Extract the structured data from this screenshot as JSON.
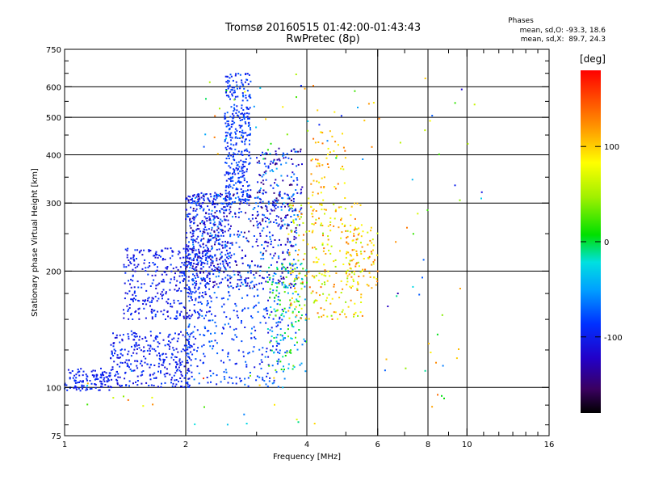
{
  "header": {
    "title_line1": "Tromsø 20160515 01:42:00-01:43:43",
    "title_line2": "RwPretec (8p)"
  },
  "stats": {
    "title": "Phases",
    "o_line": "mean, sd,O: -93.3, 18.6",
    "x_line": "mean, sd,X:  89.7, 24.3"
  },
  "colorbar": {
    "unit": "[deg]",
    "range": [
      -180,
      180
    ],
    "ticks": [
      100,
      0,
      -100
    ],
    "tick_labels": [
      "100",
      "0",
      "-100"
    ]
  },
  "chart_data": {
    "type": "scatter",
    "title": "",
    "xlabel": "Frequency [MHz]",
    "ylabel": "Stationary phase Virtual Height [km]",
    "x_scale": "log",
    "y_scale": "log",
    "xlim": [
      1,
      16
    ],
    "ylim": [
      75,
      750
    ],
    "x_ticks": [
      1,
      2,
      4,
      6,
      8,
      10,
      16
    ],
    "x_tick_labels": [
      "1",
      "2",
      "4",
      "6",
      "8",
      "10",
      "16"
    ],
    "y_ticks": [
      75,
      100,
      200,
      300,
      400,
      500,
      600,
      750
    ],
    "y_tick_labels": [
      "75",
      "100",
      "200",
      "300",
      "400",
      "500",
      "600",
      "750"
    ],
    "x_grid": [
      2,
      4,
      6,
      8,
      10
    ],
    "y_grid": [
      100,
      200,
      300,
      400,
      500,
      600
    ],
    "color_encodes": "phase [deg]",
    "clusters": [
      {
        "x": [
          1.0,
          1.3
        ],
        "y": [
          98,
          112
        ],
        "phase": [
          -110,
          -85
        ],
        "n": 120
      },
      {
        "x": [
          1.3,
          2.1
        ],
        "y": [
          100,
          140
        ],
        "phase": [
          -115,
          -80
        ],
        "n": 320
      },
      {
        "x": [
          1.4,
          2.3
        ],
        "y": [
          150,
          230
        ],
        "phase": [
          -120,
          -80
        ],
        "n": 380
      },
      {
        "x": [
          2.0,
          2.6
        ],
        "y": [
          200,
          320
        ],
        "phase": [
          -115,
          -75
        ],
        "n": 250
      },
      {
        "x": [
          2.5,
          2.9
        ],
        "y": [
          300,
          650
        ],
        "phase": [
          -105,
          -70
        ],
        "n": 360
      },
      {
        "x": [
          2.0,
          3.5
        ],
        "y": [
          100,
          200
        ],
        "phase": [
          -110,
          -60
        ],
        "n": 320
      },
      {
        "x": [
          2.0,
          3.8
        ],
        "y": [
          180,
          320
        ],
        "phase": [
          -150,
          -50
        ],
        "n": 520
      },
      {
        "x": [
          3.0,
          3.9
        ],
        "y": [
          260,
          420
        ],
        "phase": [
          -160,
          -40
        ],
        "n": 170
      },
      {
        "x": [
          3.2,
          4.0
        ],
        "y": [
          110,
          210
        ],
        "phase": [
          -90,
          40
        ],
        "n": 160
      },
      {
        "x": [
          3.6,
          5.5
        ],
        "y": [
          150,
          300
        ],
        "phase": [
          40,
          140
        ],
        "n": 240
      },
      {
        "x": [
          4.0,
          5.0
        ],
        "y": [
          260,
          460
        ],
        "phase": [
          70,
          140
        ],
        "n": 70
      },
      {
        "x": [
          5.0,
          6.0
        ],
        "y": [
          180,
          260
        ],
        "phase": [
          60,
          140
        ],
        "n": 80
      },
      {
        "x": [
          2.2,
          6.0
        ],
        "y": [
          380,
          650
        ],
        "phase": [
          -100,
          140
        ],
        "n": 45
      },
      {
        "x": [
          1.1,
          4.5
        ],
        "y": [
          80,
          112
        ],
        "phase": [
          -60,
          160
        ],
        "n": 25
      },
      {
        "x": [
          6.0,
          11.0
        ],
        "y": [
          85,
          650
        ],
        "phase": [
          -130,
          140
        ],
        "n": 45
      }
    ]
  }
}
